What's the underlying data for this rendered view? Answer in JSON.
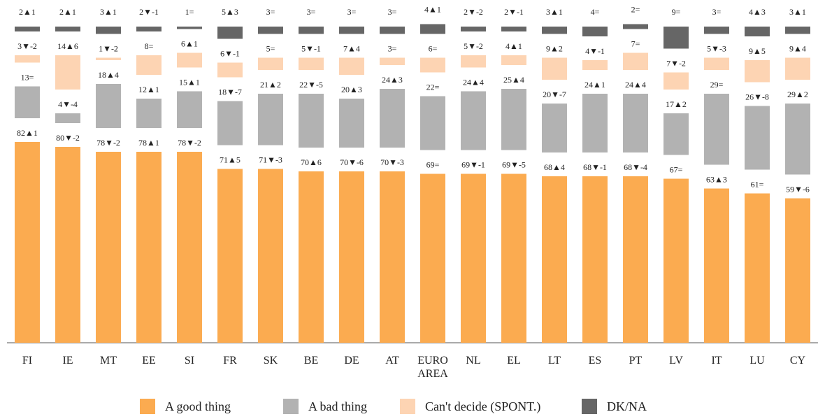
{
  "chart_data": {
    "type": "stacked_bar",
    "categories": [
      "FI",
      "IE",
      "MT",
      "EE",
      "SI",
      "FR",
      "SK",
      "BE",
      "DE",
      "AT",
      "EURO AREA",
      "NL",
      "EL",
      "LT",
      "ES",
      "PT",
      "LV",
      "IT",
      "LU",
      "CY"
    ],
    "series": [
      {
        "name": "A good thing",
        "color": "#fbab50",
        "values": [
          82,
          80,
          78,
          78,
          78,
          71,
          71,
          70,
          70,
          70,
          69,
          69,
          69,
          68,
          68,
          68,
          67,
          63,
          61,
          59
        ],
        "value_labels": [
          "82▲1",
          "80▼-2",
          "78▼-2",
          "78▲1",
          "78▼-2",
          "71▲5",
          "71▼-3",
          "70▲6",
          "70▼-6",
          "70▼-3",
          "69=",
          "69▼-1",
          "69▼-5",
          "68▲4",
          "68▼-1",
          "68▼-4",
          "67=",
          "63▲3",
          "61=",
          "59▼-6"
        ]
      },
      {
        "name": "A bad thing",
        "color": "#b2b2b2",
        "values": [
          13,
          4,
          18,
          12,
          15,
          18,
          21,
          22,
          20,
          24,
          22,
          24,
          25,
          20,
          24,
          24,
          17,
          29,
          26,
          29
        ],
        "value_labels": [
          "13=",
          "4▼-4",
          "18▲4",
          "12▲1",
          "15▲1",
          "18▼-7",
          "21▲2",
          "22▼-5",
          "20▲3",
          "24▲3",
          "22=",
          "24▲4",
          "25▲4",
          "20▼-7",
          "24▲1",
          "24▲4",
          "17▲2",
          "29=",
          "26▼-8",
          "29▲2"
        ]
      },
      {
        "name": "Can't decide (SPONT.)",
        "color": "#fdd4b3",
        "values": [
          3,
          14,
          1,
          8,
          6,
          6,
          5,
          5,
          7,
          3,
          6,
          5,
          4,
          9,
          4,
          7,
          7,
          5,
          9,
          9
        ],
        "value_labels": [
          "3▼-2",
          "14▲6",
          "1▼-2",
          "8=",
          "6▲1",
          "6▼-1",
          "5=",
          "5▼-1",
          "7▲4",
          "3=",
          "6=",
          "5▼-2",
          "4▲1",
          "9▲2",
          "4▼-1",
          "7=",
          "7▼-2",
          "5▼-3",
          "9▲5",
          "9▲4"
        ]
      },
      {
        "name": "DK/NA",
        "color": "#666666",
        "values": [
          2,
          2,
          3,
          2,
          1,
          5,
          3,
          3,
          3,
          3,
          4,
          2,
          2,
          3,
          4,
          2,
          9,
          3,
          4,
          3
        ],
        "value_labels": [
          "2▲1",
          "2▲1",
          "3▲1",
          "2▼-1",
          "1=",
          "5▲3",
          "3=",
          "3=",
          "3=",
          "3=",
          "4▲1",
          "2▼-2",
          "2▼-1",
          "3▲1",
          "4=",
          "2=",
          "9=",
          "3=",
          "4▲3",
          "3▲1"
        ]
      }
    ],
    "legend": "bottom"
  }
}
